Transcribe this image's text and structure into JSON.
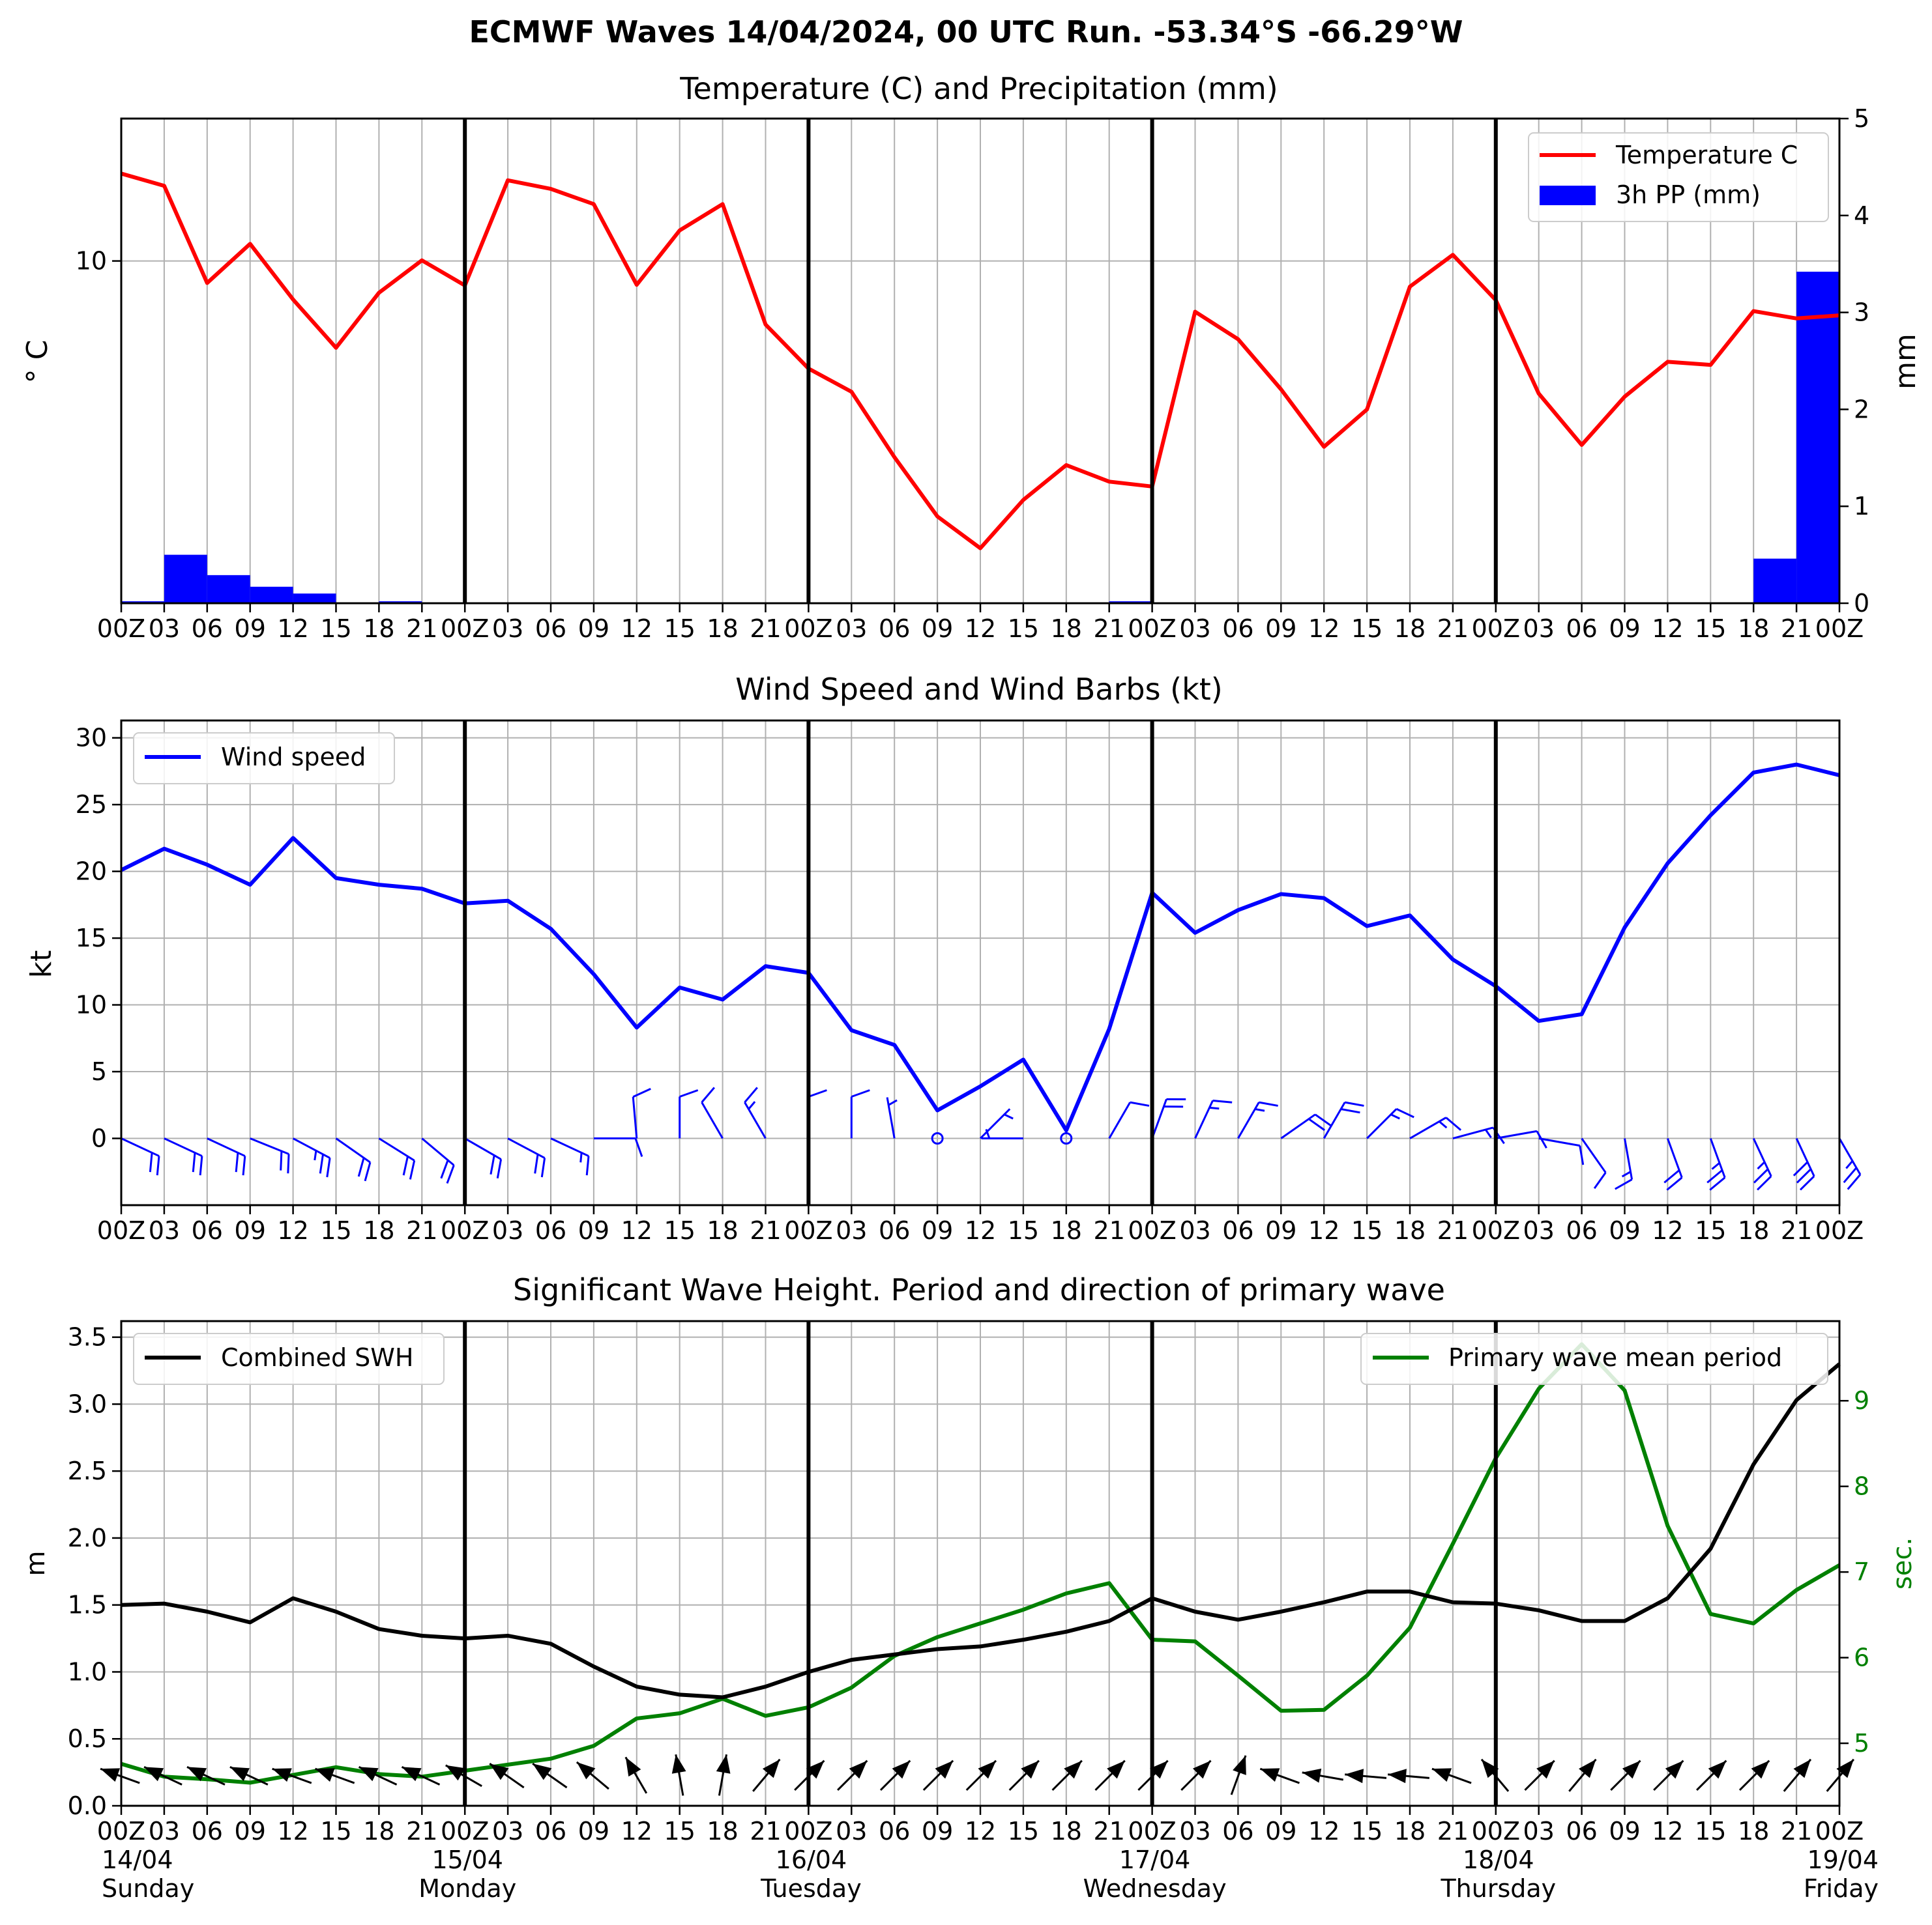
{
  "suptitle": "ECMWF Waves 14/04/2024, 00 UTC Run. -53.34°S -66.29°W",
  "hour_labels": [
    "00Z",
    "03",
    "06",
    "09",
    "12",
    "15",
    "18",
    "21",
    "00Z",
    "03",
    "06",
    "09",
    "12",
    "15",
    "18",
    "21",
    "00Z",
    "03",
    "06",
    "09",
    "12",
    "15",
    "18",
    "21",
    "00Z",
    "03",
    "06",
    "09",
    "12",
    "15",
    "18",
    "21",
    "00Z",
    "03",
    "06",
    "09",
    "12",
    "15",
    "18",
    "21",
    "00Z"
  ],
  "day_labels": [
    {
      "date": "14/04",
      "day": "Sunday"
    },
    {
      "date": "15/04",
      "day": "Monday"
    },
    {
      "date": "16/04",
      "day": "Tuesday"
    },
    {
      "date": "17/04",
      "day": "Wednesday"
    },
    {
      "date": "18/04",
      "day": "Thursday"
    },
    {
      "date": "19/04",
      "day": "Friday"
    }
  ],
  "colors": {
    "temperature": "#ff0000",
    "precip": "#0000ff",
    "wind": "#0000ff",
    "swh": "#000000",
    "period": "#008000",
    "grid": "#b0b0b0"
  },
  "chart_data": [
    {
      "type": "line",
      "title": "Temperature (C) and Precipitation (mm)",
      "ylabel": "° C",
      "ylabel_right": "mm",
      "x_step_hours": 3,
      "x_range_hours": [
        0,
        120
      ],
      "ylim": [
        4.4,
        12.33
      ],
      "yticks": [
        10
      ],
      "ylim_right": [
        0,
        5
      ],
      "yticks_right": [
        0,
        1,
        2,
        3,
        4,
        5
      ],
      "legend": {
        "placement": "top-right",
        "entries": [
          "Temperature C",
          "3h PP (mm)"
        ]
      },
      "series": [
        {
          "name": "Temperature C",
          "kind": "line",
          "values": [
            11.43,
            11.23,
            9.64,
            10.28,
            9.37,
            8.58,
            9.48,
            10.01,
            9.6,
            11.32,
            11.18,
            10.93,
            9.61,
            10.5,
            10.93,
            8.96,
            8.24,
            7.86,
            6.79,
            5.82,
            5.3,
            6.09,
            6.66,
            6.39,
            6.31,
            9.17,
            8.72,
            7.9,
            6.96,
            7.57,
            9.58,
            10.1,
            9.36,
            7.83,
            6.99,
            7.78,
            8.35,
            8.3,
            9.18,
            9.06,
            9.11
          ]
        },
        {
          "name": "3h PP (mm)",
          "kind": "bar",
          "values": [
            0.02,
            0.5,
            0.29,
            0.17,
            0.1,
            0.0,
            0.02,
            0.0,
            0.0,
            0.0,
            0.0,
            0.0,
            0.0,
            0.0,
            0.0,
            0.0,
            0.0,
            0.0,
            0.0,
            0.0,
            0.0,
            0.0,
            0.0,
            0.02,
            0.0,
            0.0,
            0.0,
            0.0,
            0.0,
            0.0,
            0.0,
            0.0,
            0.0,
            0.0,
            0.0,
            0.0,
            0.0,
            0.0,
            0.46,
            3.42
          ]
        }
      ]
    },
    {
      "type": "line",
      "title": "Wind Speed and Wind Barbs (kt)",
      "ylabel": "kt",
      "x_step_hours": 3,
      "x_range_hours": [
        0,
        120
      ],
      "ylim": [
        -5,
        31.3
      ],
      "yticks": [
        0,
        5,
        10,
        15,
        20,
        25,
        30
      ],
      "legend": {
        "placement": "top-left",
        "entries": [
          "Wind speed"
        ]
      },
      "series": [
        {
          "name": "Wind speed",
          "values": [
            20.1,
            21.7,
            20.5,
            19.0,
            22.5,
            19.5,
            19.0,
            18.7,
            17.6,
            17.8,
            15.7,
            12.3,
            8.3,
            11.3,
            10.4,
            12.9,
            12.4,
            8.1,
            7.0,
            2.1,
            3.9,
            5.9,
            0.6,
            8.2,
            18.4,
            15.4,
            17.1,
            18.3,
            18.0,
            15.9,
            16.7,
            13.4,
            11.4,
            8.8,
            9.3,
            15.8,
            20.6,
            24.2,
            27.4,
            28.0,
            27.2
          ]
        }
      ],
      "barbs": {
        "y": 0,
        "wind_from_deg": [
          115,
          115,
          115,
          112,
          118,
          125,
          122,
          130,
          120,
          118,
          115,
          90,
          355,
          0,
          330,
          330,
          0,
          0,
          350,
          null,
          45,
          270,
          275,
          30,
          20,
          25,
          30,
          55,
          30,
          45,
          60,
          75,
          80,
          100,
          145,
          170,
          160,
          160,
          155,
          155,
          150
        ]
      }
    },
    {
      "type": "line",
      "title": "Significant Wave Height. Period and direction of primary wave",
      "ylabel": "m",
      "ylabel_right": "sec.",
      "x_step_hours": 3,
      "x_range_hours": [
        0,
        120
      ],
      "ylim": [
        0,
        3.62
      ],
      "yticks": [
        0.0,
        0.5,
        1.0,
        1.5,
        2.0,
        2.5,
        3.0,
        3.5
      ],
      "ylim_right": [
        4.27,
        9.93
      ],
      "yticks_right": [
        5,
        6,
        7,
        8,
        9
      ],
      "legend": {
        "placement": "top-left / top-right",
        "entries": [
          "Combined SWH",
          "Primary wave mean period"
        ]
      },
      "series": [
        {
          "name": "Combined SWH",
          "axis": "left",
          "values": [
            1.5,
            1.51,
            1.45,
            1.37,
            1.55,
            1.45,
            1.32,
            1.27,
            1.25,
            1.27,
            1.21,
            1.04,
            0.89,
            0.83,
            0.81,
            0.89,
            1.0,
            1.09,
            1.13,
            1.17,
            1.19,
            1.24,
            1.3,
            1.38,
            1.55,
            1.45,
            1.39,
            1.45,
            1.52,
            1.6,
            1.6,
            1.52,
            1.51,
            1.46,
            1.38,
            1.38,
            1.55,
            1.92,
            2.55,
            3.03,
            3.3
          ]
        },
        {
          "name": "Primary wave mean period",
          "axis": "right",
          "values": [
            4.76,
            4.61,
            4.58,
            4.54,
            4.63,
            4.72,
            4.64,
            4.61,
            4.68,
            4.75,
            4.82,
            4.97,
            5.29,
            5.35,
            5.52,
            5.32,
            5.42,
            5.65,
            6.02,
            6.24,
            6.4,
            6.56,
            6.75,
            6.87,
            6.21,
            6.19,
            5.79,
            5.38,
            5.39,
            5.79,
            6.35,
            7.33,
            8.33,
            9.14,
            9.66,
            9.12,
            7.54,
            6.51,
            6.4,
            6.79,
            7.08
          ]
        }
      ],
      "direction_arrows": {
        "y": 0.22,
        "direction_deg": [
          290,
          295,
          295,
          295,
          290,
          290,
          295,
          295,
          300,
          305,
          305,
          310,
          330,
          350,
          10,
          40,
          45,
          45,
          45,
          45,
          45,
          45,
          45,
          45,
          45,
          45,
          20,
          290,
          280,
          275,
          275,
          290,
          320,
          45,
          40,
          45,
          45,
          45,
          45,
          40,
          40
        ]
      }
    }
  ]
}
